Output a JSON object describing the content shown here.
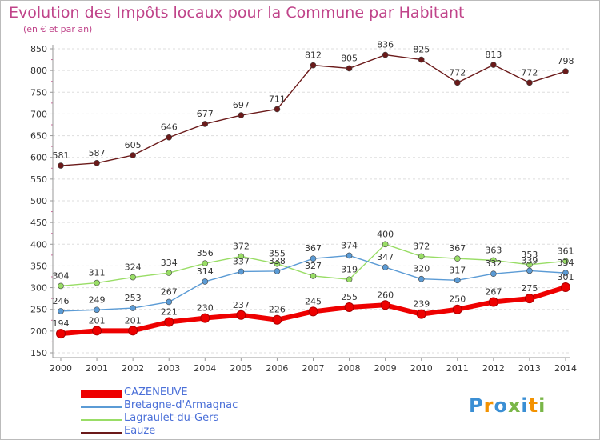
{
  "title": "Evolution des Impôts locaux pour la Commune par Habitant",
  "subtitle": "(en € et par an)",
  "logo": {
    "text": "Proxiti",
    "colors": [
      "#3b8fd4",
      "#f39200",
      "#3b8fd4",
      "#7ab648",
      "#3b8fd4",
      "#f39200",
      "#7ab648"
    ]
  },
  "chart_data": {
    "type": "line",
    "x": [
      2000,
      2001,
      2002,
      2003,
      2004,
      2005,
      2006,
      2007,
      2008,
      2009,
      2010,
      2011,
      2012,
      2013,
      2014
    ],
    "ylim": [
      150,
      850
    ],
    "yticks": [
      150,
      200,
      250,
      300,
      350,
      400,
      450,
      500,
      550,
      600,
      650,
      700,
      750,
      800,
      850
    ],
    "grid": "horizontal",
    "legend_position": "bottom-left",
    "series": [
      {
        "name": "CAZENEUVE",
        "color": "#ee0000",
        "values": [
          194,
          201,
          201,
          221,
          230,
          237,
          226,
          245,
          255,
          260,
          239,
          250,
          267,
          275,
          301
        ]
      },
      {
        "name": "Bretagne-d'Armagnac",
        "color": "#5b9bd5",
        "values": [
          246,
          249,
          253,
          267,
          314,
          337,
          338,
          367,
          374,
          347,
          320,
          317,
          332,
          339,
          334
        ]
      },
      {
        "name": "Lagraulet-du-Gers",
        "color": "#99dd66",
        "values": [
          304,
          311,
          324,
          334,
          356,
          372,
          355,
          327,
          319,
          400,
          372,
          367,
          363,
          353,
          361
        ]
      },
      {
        "name": "Eauze",
        "color": "#6b1a1a",
        "values": [
          581,
          587,
          605,
          646,
          677,
          697,
          711,
          812,
          805,
          836,
          825,
          772,
          813,
          772,
          798
        ]
      }
    ]
  }
}
